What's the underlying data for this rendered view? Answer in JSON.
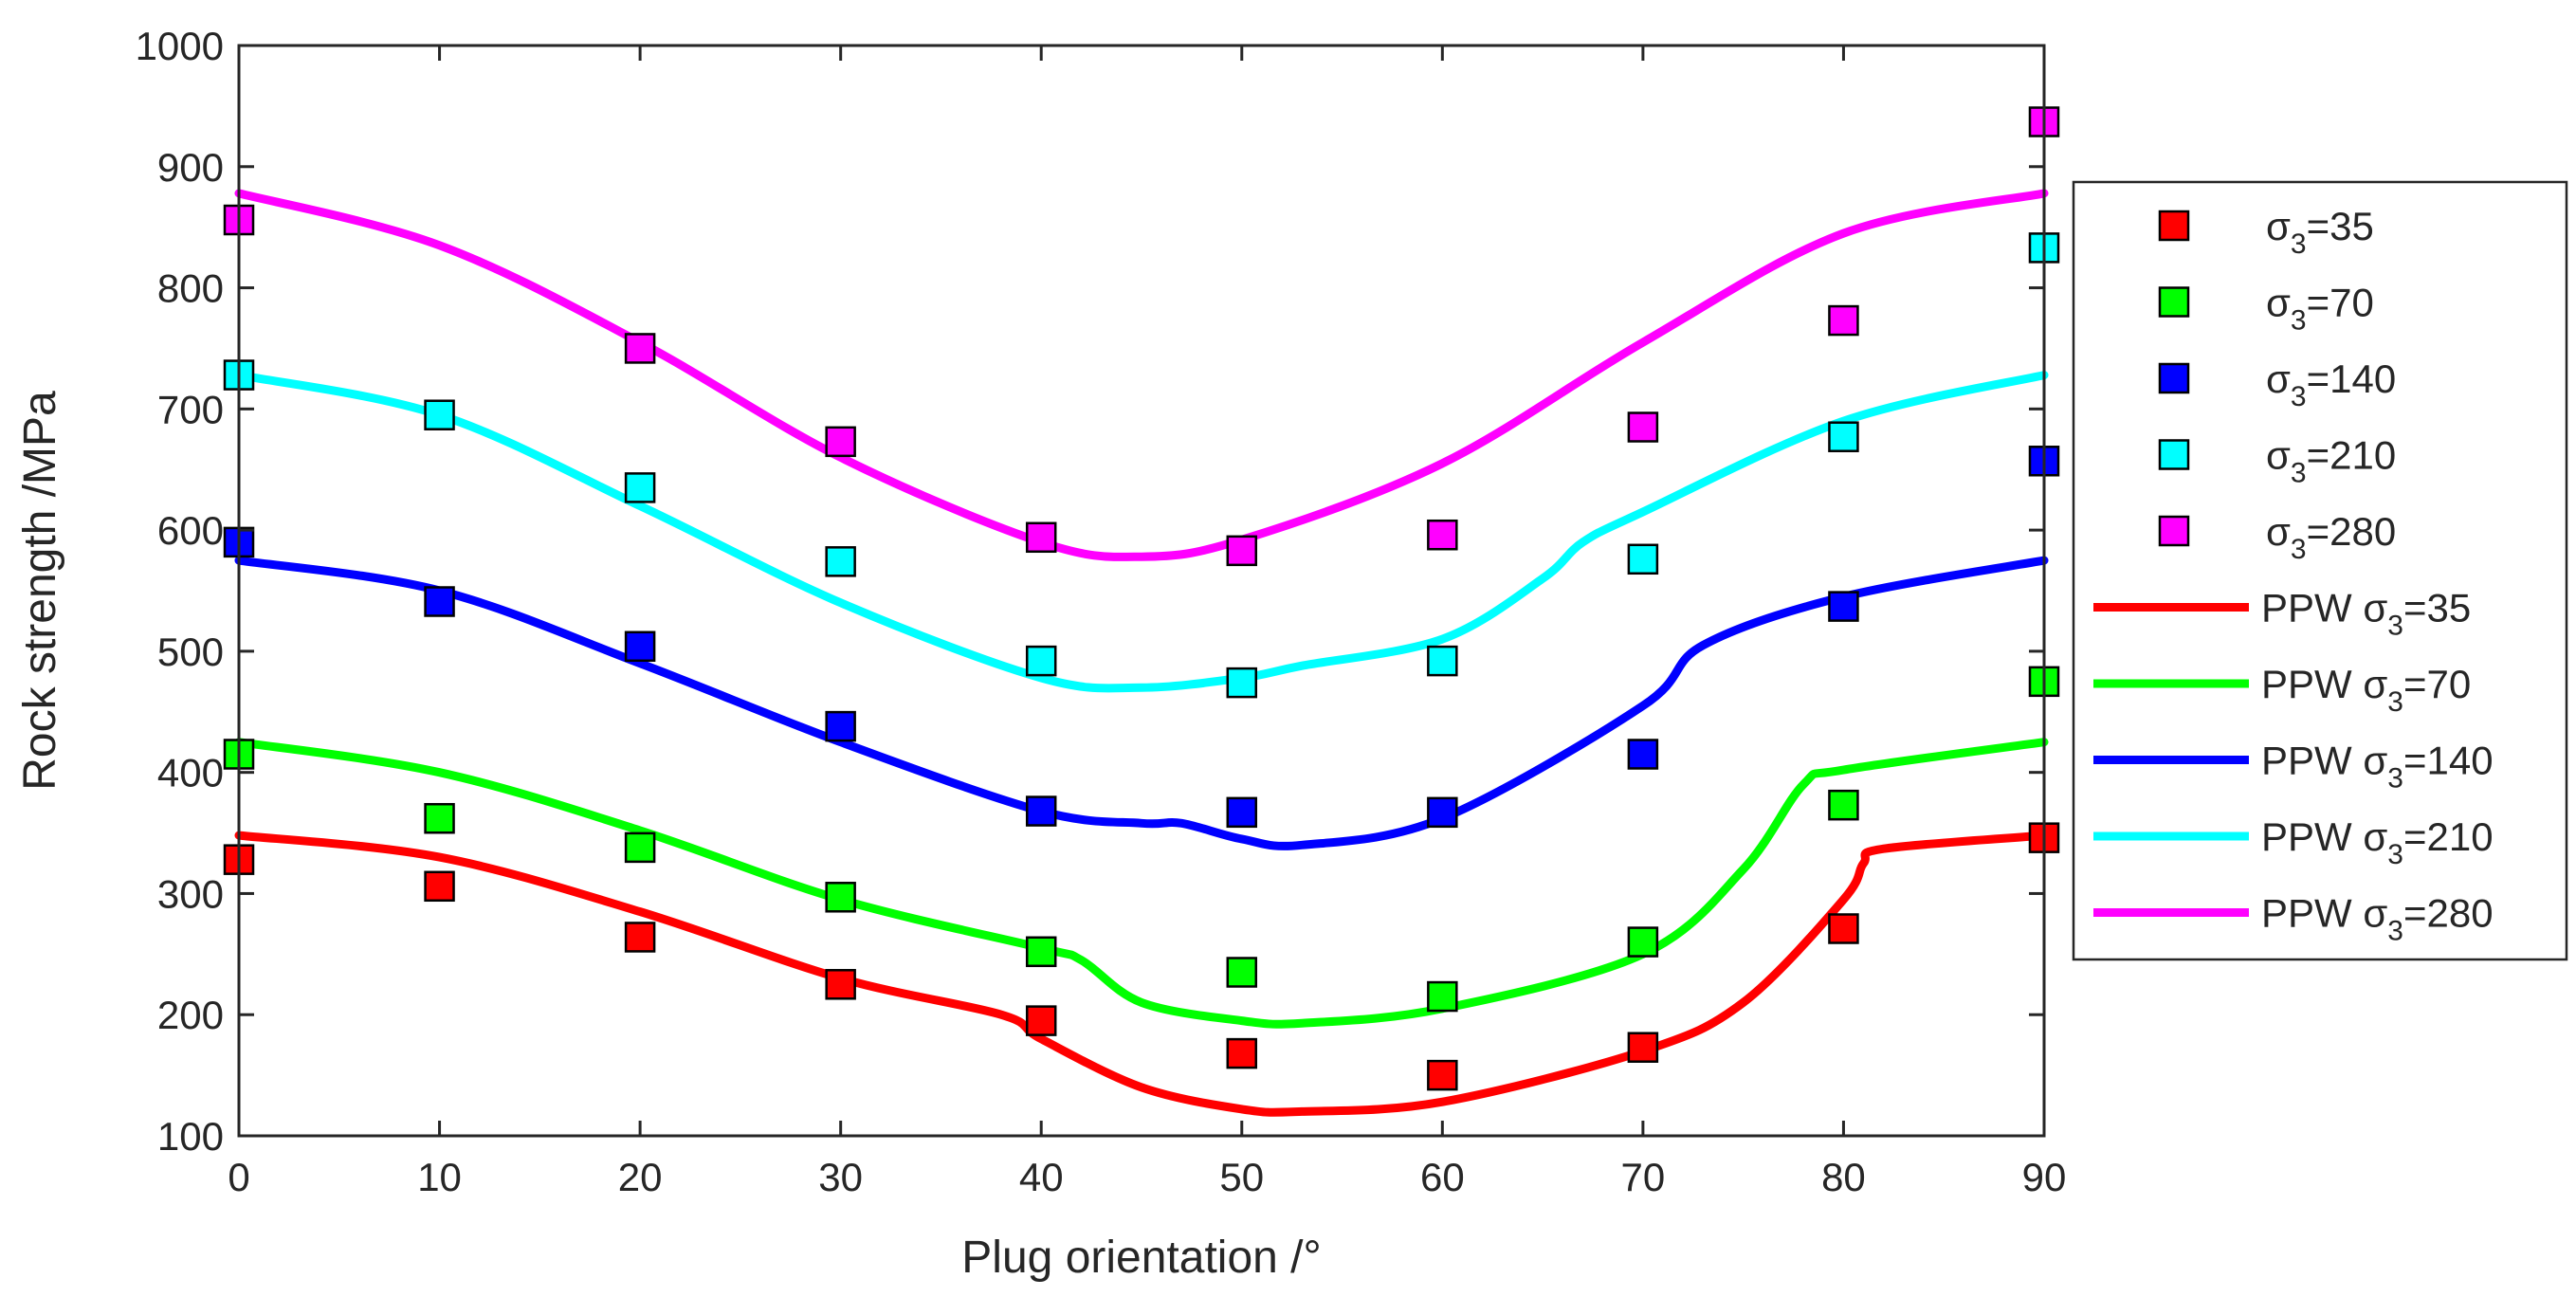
{
  "chart_data": {
    "type": "scatter",
    "title": "",
    "xlabel": "Plug orientation /°",
    "ylabel": "Rock strength /MPa",
    "xlim": [
      0,
      90
    ],
    "ylim": [
      100,
      1000
    ],
    "xticks": [
      0,
      10,
      20,
      30,
      40,
      50,
      60,
      70,
      80,
      90
    ],
    "yticks": [
      100,
      200,
      300,
      400,
      500,
      600,
      700,
      800,
      900,
      1000
    ],
    "legend_position": "outside-right",
    "grid": false,
    "series": [
      {
        "name": "σ3=35",
        "label_prefix": "σ",
        "label_sub": "3",
        "label_suffix": "=35",
        "kind": "marker",
        "color": "#ff0000",
        "x": [
          0,
          10,
          20,
          30,
          40,
          50,
          60,
          70,
          80,
          90
        ],
        "y": [
          328,
          306,
          264,
          225,
          195,
          168,
          150,
          173,
          271,
          346
        ]
      },
      {
        "name": "σ3=70",
        "label_prefix": "σ",
        "label_sub": "3",
        "label_suffix": "=70",
        "kind": "marker",
        "color": "#00ff00",
        "x": [
          0,
          10,
          20,
          30,
          40,
          50,
          60,
          70,
          80,
          90
        ],
        "y": [
          415,
          362,
          338,
          297,
          252,
          235,
          215,
          260,
          373,
          475
        ]
      },
      {
        "name": "σ3=140",
        "label_prefix": "σ",
        "label_sub": "3",
        "label_suffix": "=140",
        "kind": "marker",
        "color": "#0000ff",
        "x": [
          0,
          10,
          20,
          30,
          40,
          50,
          60,
          70,
          80,
          90
        ],
        "y": [
          590,
          541,
          504,
          438,
          368,
          367,
          367,
          415,
          537,
          657
        ]
      },
      {
        "name": "σ3=210",
        "label_prefix": "σ",
        "label_sub": "3",
        "label_suffix": "=210",
        "kind": "marker",
        "color": "#00ffff",
        "x": [
          0,
          10,
          20,
          30,
          40,
          50,
          60,
          70,
          80,
          90
        ],
        "y": [
          728,
          695,
          635,
          574,
          492,
          474,
          492,
          576,
          677,
          833
        ]
      },
      {
        "name": "σ3=280",
        "label_prefix": "σ",
        "label_sub": "3",
        "label_suffix": "=280",
        "kind": "marker",
        "color": "#ff00ff",
        "x": [
          0,
          10,
          20,
          30,
          40,
          50,
          60,
          70,
          80,
          90
        ],
        "y": [
          856,
          null,
          750,
          673,
          594,
          583,
          596,
          685,
          773,
          937
        ]
      },
      {
        "name": "PPW σ3=35",
        "label_prefix": "PPW σ",
        "label_sub": "3",
        "label_suffix": "=35",
        "kind": "line",
        "color": "#ff0000",
        "x": [
          0,
          10,
          20,
          30,
          38,
          40,
          45,
          50,
          53,
          60,
          70,
          75,
          80,
          81,
          82,
          90
        ],
        "y": [
          348,
          330,
          285,
          230,
          200,
          180,
          140,
          122,
          120,
          128,
          170,
          210,
          295,
          325,
          337,
          348
        ]
      },
      {
        "name": "PPW σ3=70",
        "label_prefix": "PPW σ",
        "label_sub": "3",
        "label_suffix": "=70",
        "kind": "line",
        "color": "#00ff00",
        "x": [
          0,
          10,
          20,
          30,
          40,
          42,
          45,
          50,
          53,
          60,
          70,
          75,
          78,
          80,
          90
        ],
        "y": [
          425,
          400,
          352,
          295,
          255,
          245,
          210,
          195,
          193,
          205,
          250,
          320,
          390,
          402,
          425
        ]
      },
      {
        "name": "PPW σ3=140",
        "label_prefix": "PPW σ",
        "label_sub": "3",
        "label_suffix": "=140",
        "kind": "line",
        "color": "#0000ff",
        "x": [
          0,
          10,
          20,
          30,
          40,
          45,
          47,
          50,
          53,
          60,
          70,
          73,
          80,
          90
        ],
        "y": [
          575,
          550,
          490,
          425,
          368,
          358,
          358,
          345,
          340,
          362,
          455,
          505,
          545,
          575
        ]
      },
      {
        "name": "PPW σ3=210",
        "label_prefix": "PPW σ",
        "label_sub": "3",
        "label_suffix": "=210",
        "kind": "line",
        "color": "#00ffff",
        "x": [
          0,
          10,
          20,
          30,
          40,
          45,
          50,
          53,
          60,
          65,
          67,
          70,
          80,
          90
        ],
        "y": [
          728,
          695,
          620,
          540,
          478,
          470,
          478,
          488,
          510,
          560,
          590,
          615,
          690,
          728
        ]
      },
      {
        "name": "PPW σ3=280",
        "label_prefix": "PPW σ",
        "label_sub": "3",
        "label_suffix": "=280",
        "kind": "line",
        "color": "#ff00ff",
        "x": [
          0,
          10,
          20,
          30,
          40,
          45,
          50,
          60,
          70,
          80,
          90
        ],
        "y": [
          878,
          835,
          755,
          660,
          590,
          578,
          592,
          655,
          755,
          845,
          878
        ]
      }
    ]
  }
}
